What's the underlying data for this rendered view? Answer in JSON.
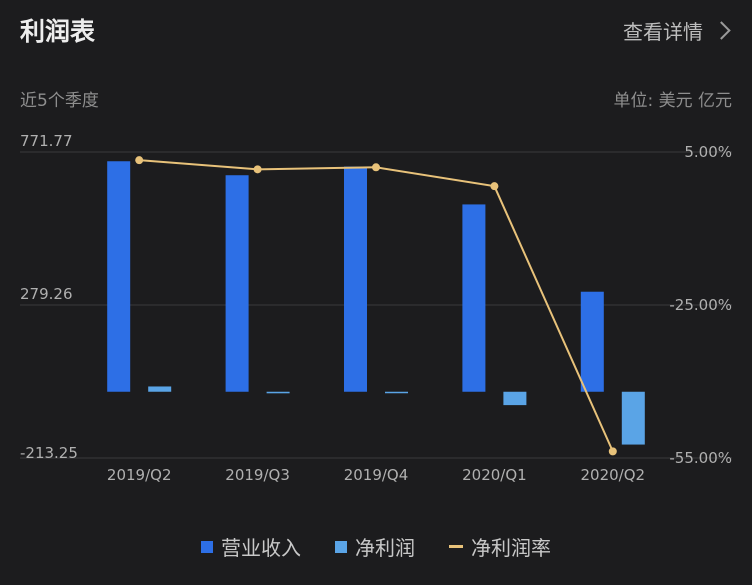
{
  "header": {
    "title": "利润表",
    "details_label": "查看详情",
    "subtitle": "近5个季度",
    "unit": "单位: 美元 亿元"
  },
  "colors": {
    "revenue": "#2d6fe6",
    "net_profit": "#5aa4e6",
    "margin": "#e8c27a",
    "grid": "#3a3a3c",
    "axis_text": "#b0b0b0"
  },
  "chart_data": {
    "type": "bar",
    "categories": [
      "2019/Q2",
      "2019/Q3",
      "2019/Q4",
      "2020/Q1",
      "2020/Q2"
    ],
    "series": [
      {
        "name": "营业收入",
        "type": "bar",
        "axis": "left",
        "values": [
          742,
          697,
          725,
          603,
          322
        ]
      },
      {
        "name": "净利润",
        "type": "bar",
        "axis": "left",
        "values": [
          17,
          -5,
          -1,
          -43,
          -170
        ]
      },
      {
        "name": "净利润率",
        "type": "line",
        "axis": "right",
        "values": [
          3.4,
          1.6,
          2.0,
          -1.7,
          -53.7
        ]
      }
    ],
    "y_left": {
      "ticks": [
        "771.77",
        "279.26",
        "-213.25"
      ],
      "range": [
        -213.25,
        771.77
      ]
    },
    "y_right": {
      "ticks": [
        "5.00%",
        "-25.00%",
        "-55.00%"
      ],
      "range": [
        -55,
        5
      ]
    },
    "legend": [
      "营业收入",
      "净利润",
      "净利润率"
    ],
    "legend_position": "bottom"
  }
}
